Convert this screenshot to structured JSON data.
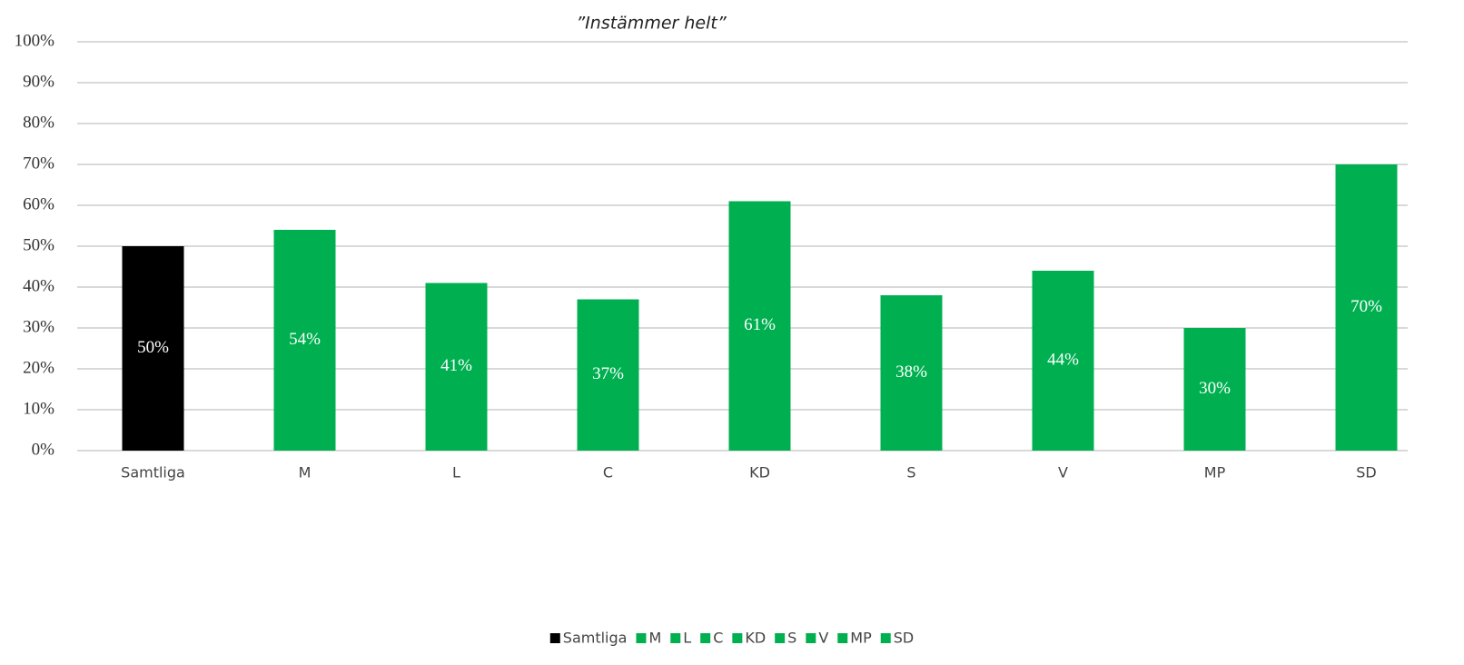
{
  "chart_data": {
    "type": "bar",
    "title": "”Instämmer helt”",
    "categories": [
      "Samtliga",
      "M",
      "L",
      "C",
      "KD",
      "S",
      "V",
      "MP",
      "SD"
    ],
    "values": [
      50,
      54,
      41,
      37,
      61,
      38,
      44,
      30,
      70
    ],
    "value_labels": [
      "50%",
      "54%",
      "41%",
      "37%",
      "61%",
      "38%",
      "44%",
      "30%",
      "70%"
    ],
    "colors": [
      "#000000",
      "#00b050",
      "#00b050",
      "#00b050",
      "#00b050",
      "#00b050",
      "#00b050",
      "#00b050",
      "#00b050"
    ],
    "ylim": [
      0,
      100
    ],
    "yticks": [
      {
        "value": 0,
        "label": "0%"
      },
      {
        "value": 10,
        "label": "10%"
      },
      {
        "value": 20,
        "label": "20%"
      },
      {
        "value": 30,
        "label": "30%"
      },
      {
        "value": 40,
        "label": "40%"
      },
      {
        "value": 50,
        "label": "50%"
      },
      {
        "value": 60,
        "label": "60%"
      },
      {
        "value": 70,
        "label": "70%"
      },
      {
        "value": 80,
        "label": "80%"
      },
      {
        "value": 90,
        "label": "90%"
      },
      {
        "value": 100,
        "label": "100%"
      }
    ],
    "grid": true,
    "legend": "bottom"
  }
}
